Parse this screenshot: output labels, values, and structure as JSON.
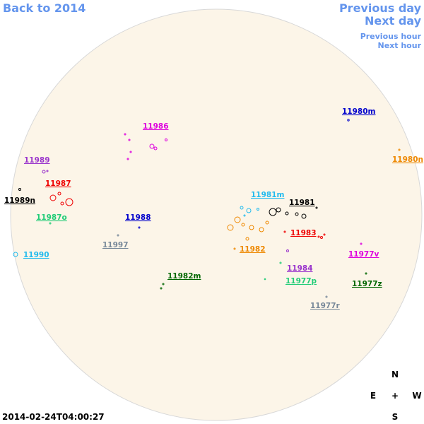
{
  "nav": {
    "back": "Back to 2014",
    "previous_day": "Previous day",
    "next_day": "Next day",
    "previous_hour": "Previous hour",
    "next_hour": "Next hour"
  },
  "timestamp": "2014-02-24T04:00:27",
  "compass": {
    "n": "N",
    "e": "E",
    "center": "+",
    "w": "W",
    "s": "S"
  },
  "regions": [
    {
      "label": "11980m",
      "color": "#0000cc"
    },
    {
      "label": "11980n",
      "color": "#ee8800"
    },
    {
      "label": "11986",
      "color": "#dd00dd"
    },
    {
      "label": "11989",
      "color": "#9933cc"
    },
    {
      "label": "11987",
      "color": "#ee0000"
    },
    {
      "label": "11989n",
      "color": "#000000"
    },
    {
      "label": "11987o",
      "color": "#22cc77"
    },
    {
      "label": "11988",
      "color": "#0000cc"
    },
    {
      "label": "11997",
      "color": "#778899"
    },
    {
      "label": "11990",
      "color": "#22bbee"
    },
    {
      "label": "11981m",
      "color": "#22bbee"
    },
    {
      "label": "11981",
      "color": "#000000"
    },
    {
      "label": "11983",
      "color": "#ee0000"
    },
    {
      "label": "11982",
      "color": "#ee8800"
    },
    {
      "label": "11977v",
      "color": "#dd00dd"
    },
    {
      "label": "11984",
      "color": "#9933cc"
    },
    {
      "label": "11982m",
      "color": "#006600"
    },
    {
      "label": "11977p",
      "color": "#22cc77"
    },
    {
      "label": "11977z",
      "color": "#006600"
    },
    {
      "label": "11977r",
      "color": "#778899"
    }
  ]
}
